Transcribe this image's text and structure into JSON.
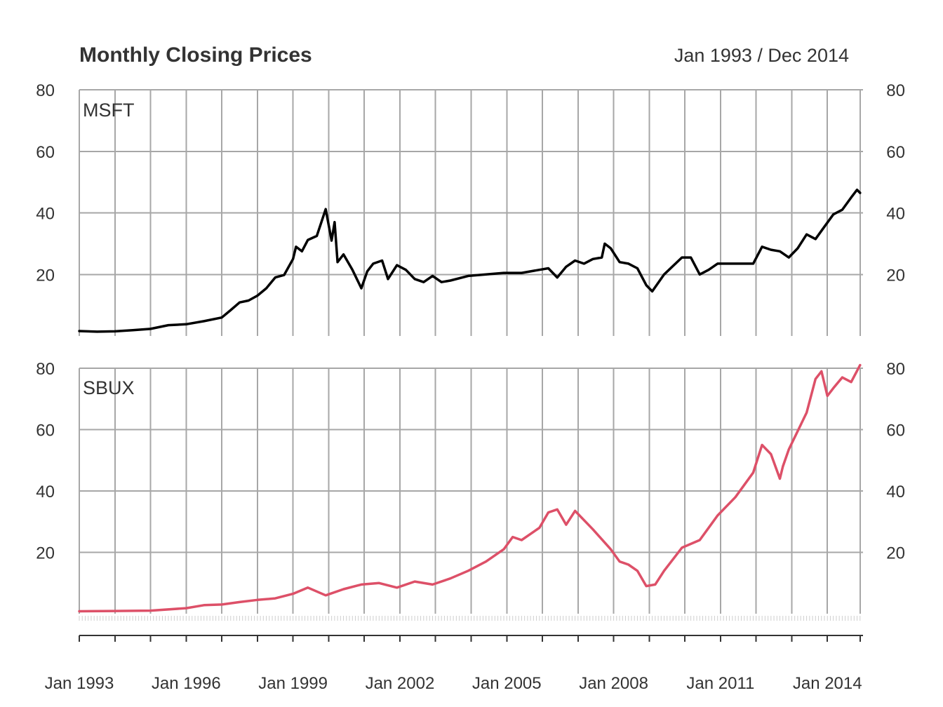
{
  "chart_data": {
    "type": "line",
    "title": "Monthly Closing Prices",
    "date_range": "Jan 1993 / Dec 2014",
    "x_start": "1993-01",
    "x_end": "2014-12",
    "x_tick_labels": [
      "Jan 1993",
      "Jan 1996",
      "Jan 1999",
      "Jan 2002",
      "Jan 2005",
      "Jan 2008",
      "Jan 2011",
      "Jan 2014"
    ],
    "x_tick_years": [
      1993,
      1996,
      1999,
      2002,
      2005,
      2008,
      2011,
      2014
    ],
    "grid": true,
    "panels": [
      {
        "name": "MSFT",
        "color": "#000000",
        "y_ticks": [
          20,
          40,
          60,
          80
        ],
        "y_tick_labels": [
          "20",
          "40",
          "60",
          "80"
        ],
        "ylim": [
          0,
          80
        ],
        "points": [
          [
            "1993-01",
            1.6
          ],
          [
            "1993-07",
            1.4
          ],
          [
            "1994-01",
            1.5
          ],
          [
            "1994-07",
            1.9
          ],
          [
            "1995-01",
            2.3
          ],
          [
            "1995-07",
            3.5
          ],
          [
            "1996-01",
            3.8
          ],
          [
            "1996-07",
            4.8
          ],
          [
            "1997-01",
            6.0
          ],
          [
            "1997-04",
            8.4
          ],
          [
            "1997-07",
            10.9
          ],
          [
            "1997-10",
            11.5
          ],
          [
            "1998-01",
            13.1
          ],
          [
            "1998-04",
            15.5
          ],
          [
            "1998-07",
            19.0
          ],
          [
            "1998-10",
            19.8
          ],
          [
            "1999-01",
            25.0
          ],
          [
            "1999-02",
            29.0
          ],
          [
            "1999-04",
            27.5
          ],
          [
            "1999-06",
            31.2
          ],
          [
            "1999-09",
            32.5
          ],
          [
            "1999-12",
            41.2
          ],
          [
            "2000-02",
            31.0
          ],
          [
            "2000-03",
            37.0
          ],
          [
            "2000-04",
            24.0
          ],
          [
            "2000-06",
            26.5
          ],
          [
            "2000-09",
            21.5
          ],
          [
            "2000-12",
            15.5
          ],
          [
            "2001-02",
            21.0
          ],
          [
            "2001-04",
            23.5
          ],
          [
            "2001-07",
            24.5
          ],
          [
            "2001-09",
            18.5
          ],
          [
            "2001-12",
            23.0
          ],
          [
            "2002-03",
            21.5
          ],
          [
            "2002-06",
            18.5
          ],
          [
            "2002-09",
            17.5
          ],
          [
            "2002-12",
            19.5
          ],
          [
            "2003-03",
            17.5
          ],
          [
            "2003-06",
            18.0
          ],
          [
            "2003-12",
            19.5
          ],
          [
            "2004-06",
            20.0
          ],
          [
            "2004-12",
            20.5
          ],
          [
            "2005-06",
            20.5
          ],
          [
            "2005-12",
            21.5
          ],
          [
            "2006-03",
            22.0
          ],
          [
            "2006-06",
            19.0
          ],
          [
            "2006-09",
            22.5
          ],
          [
            "2006-12",
            24.5
          ],
          [
            "2007-03",
            23.5
          ],
          [
            "2007-06",
            25.0
          ],
          [
            "2007-09",
            25.5
          ],
          [
            "2007-10",
            30.0
          ],
          [
            "2007-12",
            28.5
          ],
          [
            "2008-03",
            24.0
          ],
          [
            "2008-06",
            23.5
          ],
          [
            "2008-09",
            22.0
          ],
          [
            "2008-12",
            16.5
          ],
          [
            "2009-02",
            14.5
          ],
          [
            "2009-06",
            20.0
          ],
          [
            "2009-12",
            25.5
          ],
          [
            "2010-03",
            25.5
          ],
          [
            "2010-06",
            20.0
          ],
          [
            "2010-09",
            21.5
          ],
          [
            "2010-12",
            23.5
          ],
          [
            "2011-06",
            23.5
          ],
          [
            "2011-12",
            23.5
          ],
          [
            "2012-03",
            29.0
          ],
          [
            "2012-06",
            28.0
          ],
          [
            "2012-09",
            27.5
          ],
          [
            "2012-12",
            25.5
          ],
          [
            "2013-03",
            28.5
          ],
          [
            "2013-06",
            33.0
          ],
          [
            "2013-09",
            31.5
          ],
          [
            "2013-12",
            35.5
          ],
          [
            "2014-03",
            39.5
          ],
          [
            "2014-06",
            41.0
          ],
          [
            "2014-09",
            45.0
          ],
          [
            "2014-11",
            47.5
          ],
          [
            "2014-12",
            46.5
          ]
        ]
      },
      {
        "name": "SBUX",
        "color": "#dd5068",
        "y_ticks": [
          20,
          40,
          60,
          80
        ],
        "y_tick_labels": [
          "20",
          "40",
          "60",
          "80"
        ],
        "ylim": [
          0,
          80
        ],
        "points": [
          [
            "1993-01",
            0.8
          ],
          [
            "1994-01",
            0.9
          ],
          [
            "1995-01",
            1.0
          ],
          [
            "1996-01",
            1.8
          ],
          [
            "1996-07",
            2.8
          ],
          [
            "1997-01",
            3.0
          ],
          [
            "1997-07",
            3.8
          ],
          [
            "1998-01",
            4.5
          ],
          [
            "1998-07",
            5.0
          ],
          [
            "1999-01",
            6.5
          ],
          [
            "1999-06",
            8.5
          ],
          [
            "1999-12",
            6.0
          ],
          [
            "2000-06",
            8.0
          ],
          [
            "2000-12",
            9.5
          ],
          [
            "2001-06",
            10.0
          ],
          [
            "2001-12",
            8.5
          ],
          [
            "2002-06",
            10.5
          ],
          [
            "2002-12",
            9.5
          ],
          [
            "2003-06",
            11.5
          ],
          [
            "2003-12",
            14.0
          ],
          [
            "2004-06",
            17.0
          ],
          [
            "2004-12",
            21.0
          ],
          [
            "2005-03",
            25.0
          ],
          [
            "2005-06",
            24.0
          ],
          [
            "2005-12",
            28.0
          ],
          [
            "2006-03",
            33.0
          ],
          [
            "2006-06",
            34.0
          ],
          [
            "2006-09",
            29.0
          ],
          [
            "2006-12",
            33.5
          ],
          [
            "2007-06",
            27.5
          ],
          [
            "2007-12",
            21.0
          ],
          [
            "2008-03",
            17.0
          ],
          [
            "2008-06",
            16.0
          ],
          [
            "2008-09",
            14.0
          ],
          [
            "2008-12",
            9.0
          ],
          [
            "2009-03",
            9.5
          ],
          [
            "2009-06",
            14.0
          ],
          [
            "2009-12",
            21.5
          ],
          [
            "2010-06",
            24.0
          ],
          [
            "2010-12",
            32.0
          ],
          [
            "2011-06",
            38.0
          ],
          [
            "2011-12",
            46.0
          ],
          [
            "2012-03",
            55.0
          ],
          [
            "2012-06",
            52.0
          ],
          [
            "2012-09",
            44.0
          ],
          [
            "2012-10",
            48.0
          ],
          [
            "2012-12",
            53.5
          ],
          [
            "2013-06",
            65.5
          ],
          [
            "2013-09",
            76.5
          ],
          [
            "2013-11",
            79.0
          ],
          [
            "2014-01",
            71.0
          ],
          [
            "2014-03",
            73.5
          ],
          [
            "2014-06",
            77.0
          ],
          [
            "2014-09",
            75.5
          ],
          [
            "2014-12",
            81.0
          ]
        ]
      }
    ]
  }
}
